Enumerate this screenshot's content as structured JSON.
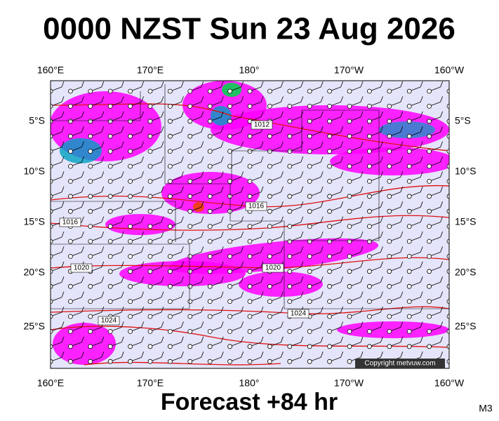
{
  "header": {
    "title": "0000 NZST Sun 23 Aug 2026"
  },
  "map": {
    "lon_labels_top": [
      "160°E",
      "170°E",
      "180°",
      "170°W",
      "160°W"
    ],
    "lon_labels_bottom": [
      "160°E",
      "170°E",
      "180°",
      "170°W",
      "160°W"
    ],
    "lat_labels_left": [
      "5°S",
      "10°S",
      "15°S",
      "20°S",
      "25°S"
    ],
    "lat_labels_right": [
      "5°S",
      "10°S",
      "15°S",
      "20°S",
      "25°S"
    ],
    "isobar_labels": [
      1012,
      1016,
      1016,
      1020,
      1020,
      1024,
      1024
    ],
    "copyright": "Copyright metvuw.com"
  },
  "footer": {
    "forecast": "Forecast +84 hr",
    "model": "M3"
  }
}
